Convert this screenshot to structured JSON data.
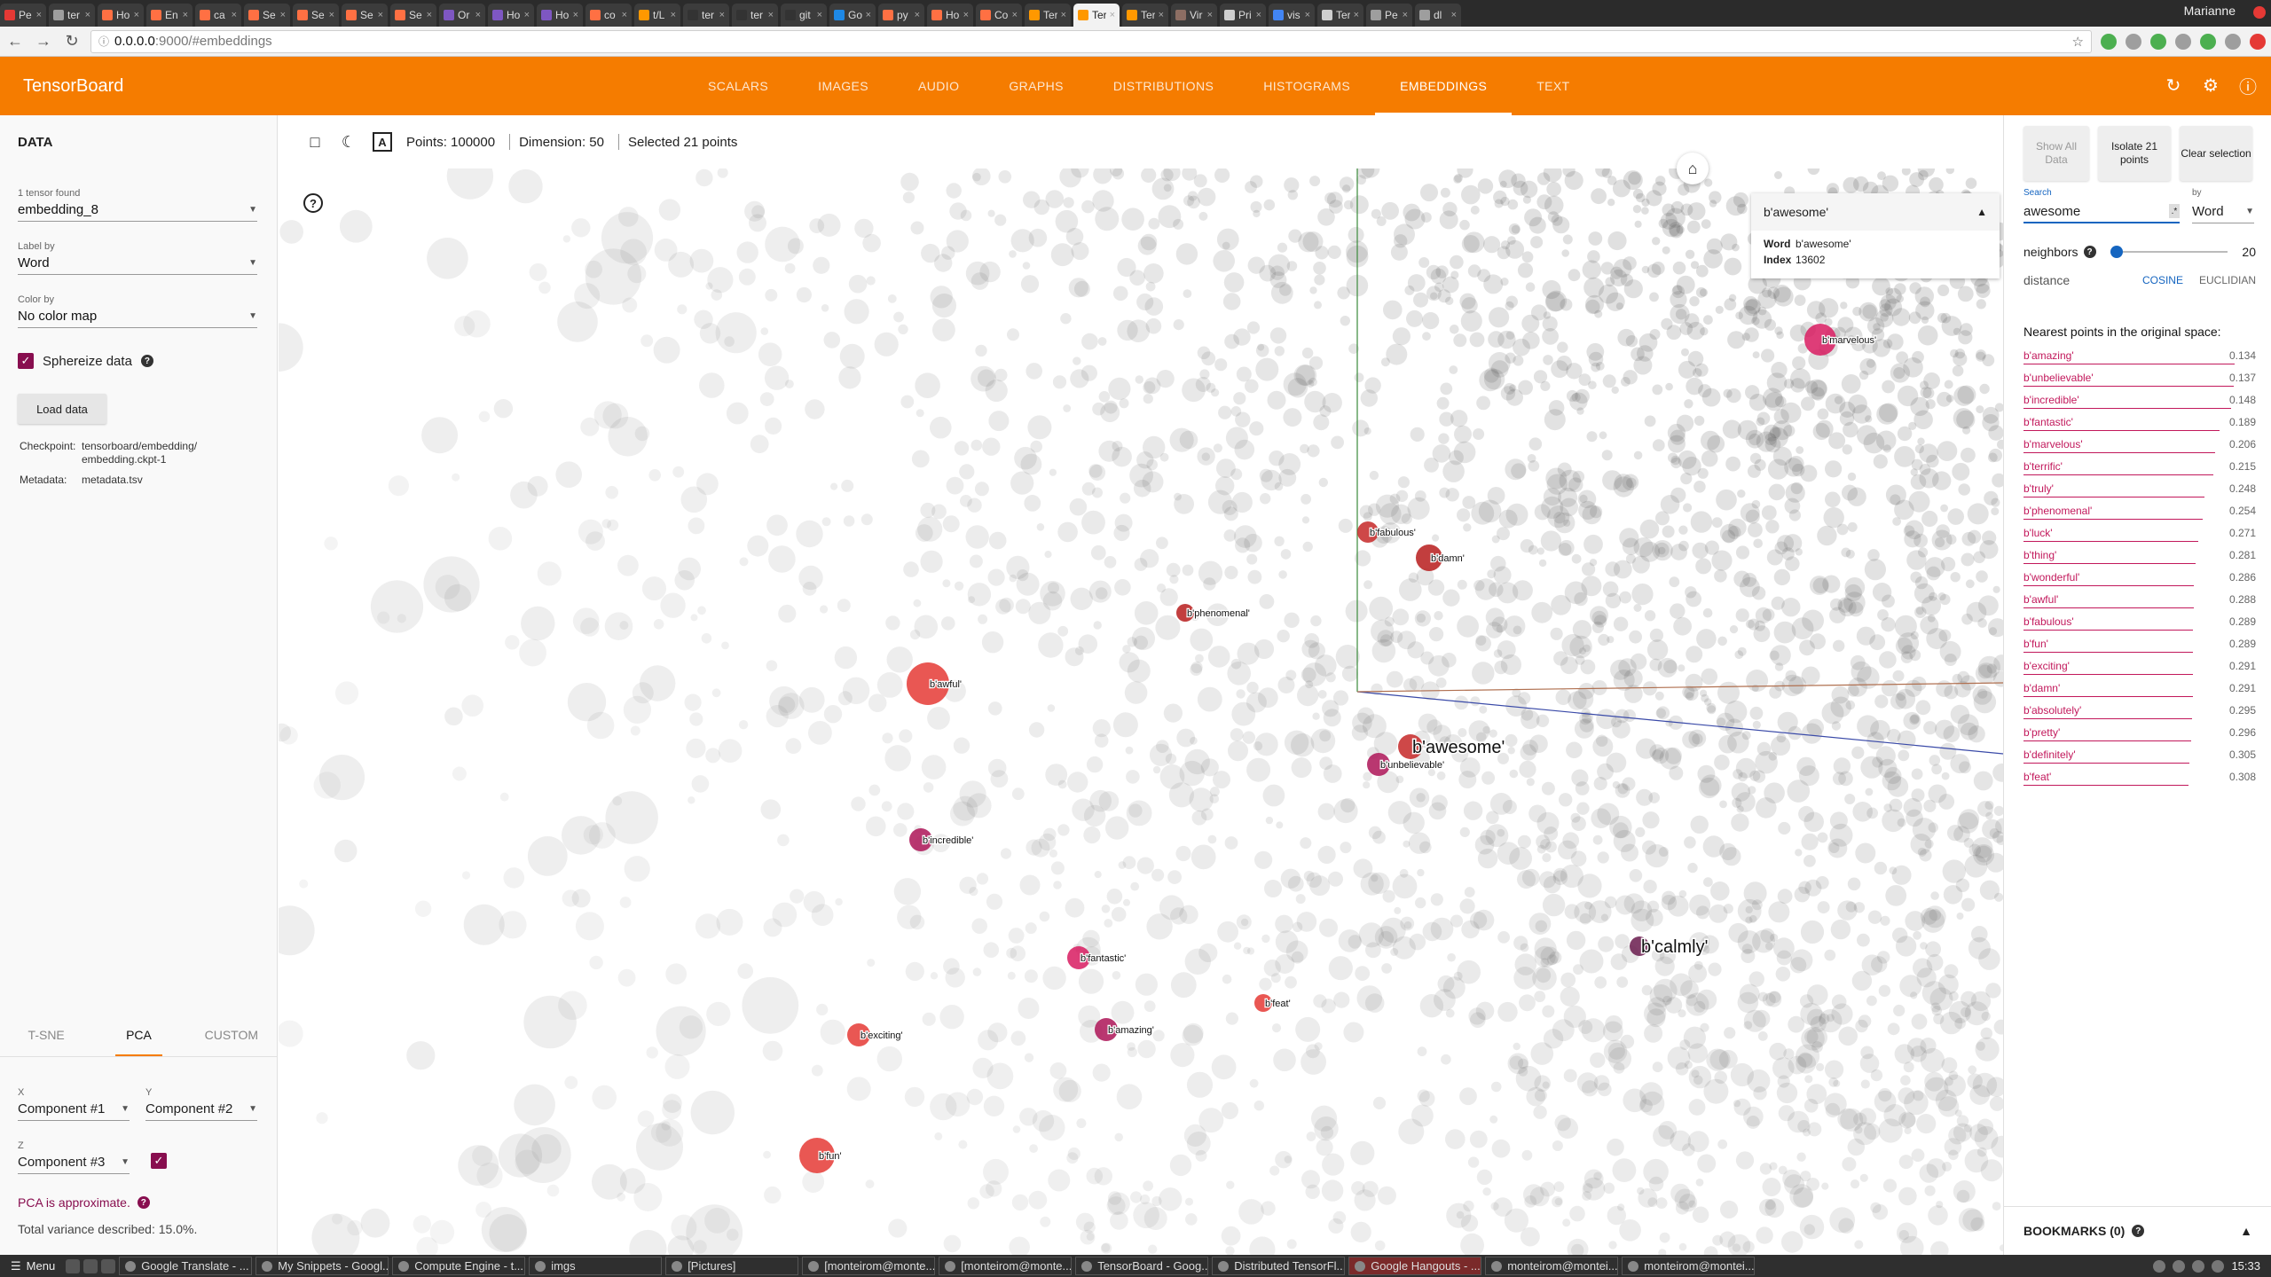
{
  "browser": {
    "tabs": [
      {
        "label": "Pe",
        "color": "#e53935"
      },
      {
        "label": "ter",
        "color": "#9e9e9e"
      },
      {
        "label": "Ho",
        "color": "#ff7043"
      },
      {
        "label": "En",
        "color": "#ff7043"
      },
      {
        "label": "ca",
        "color": "#ff7043"
      },
      {
        "label": "Se",
        "color": "#ff7043"
      },
      {
        "label": "Se",
        "color": "#ff7043"
      },
      {
        "label": "Se",
        "color": "#ff7043"
      },
      {
        "label": "Se",
        "color": "#ff7043"
      },
      {
        "label": "Or",
        "color": "#7e57c2"
      },
      {
        "label": "Ho",
        "color": "#7e57c2"
      },
      {
        "label": "Ho",
        "color": "#7e57c2"
      },
      {
        "label": "co",
        "color": "#ff7043"
      },
      {
        "label": "t/L",
        "color": "#ff9800"
      },
      {
        "label": "ter",
        "color": "#333333"
      },
      {
        "label": "ter",
        "color": "#333333"
      },
      {
        "label": "git",
        "color": "#333333"
      },
      {
        "label": "Go",
        "color": "#1e88e5"
      },
      {
        "label": "py",
        "color": "#ff7043"
      },
      {
        "label": "Ho",
        "color": "#ff7043"
      },
      {
        "label": "Co",
        "color": "#ff7043"
      },
      {
        "label": "Ter",
        "color": "#ff9800"
      },
      {
        "label": "Ter",
        "color": "#ff9800"
      },
      {
        "label": "Ter",
        "color": "#ff9800"
      },
      {
        "label": "Vir",
        "color": "#8d6e63"
      },
      {
        "label": "Pri",
        "color": "#cfcfcf"
      },
      {
        "label": "vis",
        "color": "#4285f4"
      },
      {
        "label": "Ter",
        "color": "#cfcfcf"
      },
      {
        "label": "Pe",
        "color": "#9e9e9e"
      },
      {
        "label": "dl",
        "color": "#9e9e9e"
      }
    ],
    "active_tab_index": 22,
    "profile": "Marianne",
    "url_host": "0.0.0.0",
    "url_path": ":9000/#embeddings"
  },
  "header": {
    "title": "TensorBoard",
    "tabs": [
      "SCALARS",
      "IMAGES",
      "AUDIO",
      "GRAPHS",
      "DISTRIBUTIONS",
      "HISTOGRAMS",
      "EMBEDDINGS",
      "TEXT"
    ],
    "active_tab": "EMBEDDINGS",
    "icons": [
      "refresh-icon",
      "settings-icon",
      "help-icon"
    ]
  },
  "data_panel": {
    "title": "DATA",
    "tensor_label": "1 tensor found",
    "tensor_value": "embedding_8",
    "label_by_label": "Label by",
    "label_by_value": "Word",
    "color_by_label": "Color by",
    "color_by_value": "No color map",
    "sphereize_label": "Sphereize data",
    "sphereize_checked": true,
    "load_button": "Load data",
    "checkpoint_key": "Checkpoint:",
    "checkpoint_value": "tensorboard/embedding/ embedding.ckpt-1",
    "metadata_key": "Metadata:",
    "metadata_value": "metadata.tsv"
  },
  "projection": {
    "tabs": [
      "T-SNE",
      "PCA",
      "CUSTOM"
    ],
    "active_tab": "PCA",
    "x_label": "X",
    "x_value": "Component #1",
    "y_label": "Y",
    "y_value": "Component #2",
    "z_label": "Z",
    "z_value": "Component #3",
    "z_enabled": true,
    "approx_note": "PCA is approximate.",
    "variance": "Total variance described: 15.0%."
  },
  "toolbar": {
    "points": "Points: 100000",
    "dimension": "Dimension: 50",
    "selected": "Selected 21 points"
  },
  "info_card": {
    "title": "b'awesome'",
    "word_key": "Word",
    "word_value": "b'awesome'",
    "index_key": "Index",
    "index_value": "13602"
  },
  "plot_labels": [
    {
      "text": "b'marvelous'",
      "big": false,
      "color": "#d81b60"
    },
    {
      "text": "b'fabulous'",
      "big": false,
      "color": "#c62828"
    },
    {
      "text": "b'damn'",
      "big": false,
      "color": "#b71c1c"
    },
    {
      "text": "b'phenomenal'",
      "big": false,
      "color": "#b71c1c"
    },
    {
      "text": "b'awful'",
      "big": false,
      "color": "#e53935"
    },
    {
      "text": "b'awesome'",
      "big": true,
      "color": "#c62828"
    },
    {
      "text": "b'unbelievable'",
      "big": false,
      "color": "#ad1457"
    },
    {
      "text": "b'incredible'",
      "big": false,
      "color": "#ad1457"
    },
    {
      "text": "b'fantastic'",
      "big": false,
      "color": "#d81b60"
    },
    {
      "text": "b'feat'",
      "big": false,
      "color": "#e53935"
    },
    {
      "text": "b'exciting'",
      "big": false,
      "color": "#e53935"
    },
    {
      "text": "b'amazing'",
      "big": false,
      "color": "#ad1457"
    },
    {
      "text": "b'fun'",
      "big": false,
      "color": "#e53935"
    },
    {
      "text": "b'calmly'",
      "big": true,
      "color": "#6a1b4d"
    }
  ],
  "inspector": {
    "show_all": "Show All Data",
    "isolate": "Isolate 21 points",
    "clear": "Clear selection",
    "search_label": "Search",
    "search_value": "awesome",
    "regex": ".*",
    "by_label": "by",
    "by_value": "Word",
    "neighbors_label": "neighbors",
    "neighbors_value": "20",
    "distance_label": "distance",
    "distance_cosine": "COSINE",
    "distance_euclidian": "EUCLIDIAN",
    "nearest_header": "Nearest points in the original space:",
    "nearest": [
      {
        "word": "b'amazing'",
        "dist": "0.134"
      },
      {
        "word": "b'unbelievable'",
        "dist": "0.137"
      },
      {
        "word": "b'incredible'",
        "dist": "0.148"
      },
      {
        "word": "b'fantastic'",
        "dist": "0.189"
      },
      {
        "word": "b'marvelous'",
        "dist": "0.206"
      },
      {
        "word": "b'terrific'",
        "dist": "0.215"
      },
      {
        "word": "b'truly'",
        "dist": "0.248"
      },
      {
        "word": "b'phenomenal'",
        "dist": "0.254"
      },
      {
        "word": "b'luck'",
        "dist": "0.271"
      },
      {
        "word": "b'thing'",
        "dist": "0.281"
      },
      {
        "word": "b'wonderful'",
        "dist": "0.286"
      },
      {
        "word": "b'awful'",
        "dist": "0.288"
      },
      {
        "word": "b'fabulous'",
        "dist": "0.289"
      },
      {
        "word": "b'fun'",
        "dist": "0.289"
      },
      {
        "word": "b'exciting'",
        "dist": "0.291"
      },
      {
        "word": "b'damn'",
        "dist": "0.291"
      },
      {
        "word": "b'absolutely'",
        "dist": "0.295"
      },
      {
        "word": "b'pretty'",
        "dist": "0.296"
      },
      {
        "word": "b'definitely'",
        "dist": "0.305"
      },
      {
        "word": "b'feat'",
        "dist": "0.308"
      }
    ],
    "bookmarks": "BOOKMARKS (0)"
  },
  "taskbar": {
    "menu": "Menu",
    "items": [
      "Google Translate - ...",
      "My Snippets - Googl...",
      "Compute Engine - t...",
      "imgs",
      "[Pictures]",
      "[monteirom@monte...",
      "[monteirom@monte...",
      "TensorBoard - Goog...",
      "Distributed TensorFl...",
      "Google Hangouts - ...",
      "monteirom@montei...",
      "monteirom@montei..."
    ],
    "highlighted_index": 9,
    "clock": "15:33"
  }
}
